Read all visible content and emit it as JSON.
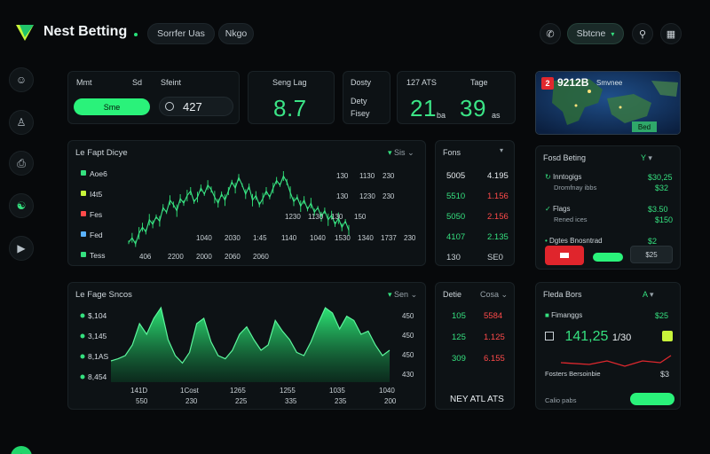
{
  "header": {
    "brand": "Nest Betting",
    "pill1": "Sorrfer Uas",
    "pill2": "Nkgo",
    "pill3": "Sbtcne"
  },
  "stats": {
    "c1_a": "Mmt",
    "c1_b": "Sd",
    "c1_c": "Sfeint",
    "c1_btn": "Sme",
    "c1_input": "427",
    "c2_label": "Seng Lag",
    "c2_value": "8.7",
    "c3_label": "Dosty",
    "c3_a": "Dety",
    "c3_b": "Fisey",
    "c4_a": "127 ATS",
    "c4_b": "Tage",
    "c4_v1": "21",
    "c4_v2": "39",
    "c4_s1": "ba",
    "c4_s2": "as"
  },
  "map": {
    "badge": "2",
    "title": "9212B",
    "sub": "Smvnee",
    "btn": "Bed"
  },
  "chart1": {
    "title": "Le Fapt Dicye",
    "filter": "Sis",
    "series": [
      "Aoe6",
      "I4t5",
      "Fes",
      "Fed",
      "Tess"
    ],
    "ticks_x": [
      "1040",
      "2030",
      "1:45",
      "1140",
      "1040"
    ],
    "ticks_x2": [
      "406",
      "2200",
      "2000",
      "2060",
      "2060"
    ],
    "ticks_right": [
      [
        "130",
        "1130",
        "230"
      ],
      [
        "130",
        "1230",
        "230"
      ],
      [
        "1230",
        "1130",
        "130",
        "150"
      ],
      [
        "1530",
        "1340",
        "1737",
        "230"
      ]
    ],
    "values": [
      32,
      35,
      31,
      38,
      42,
      39,
      47,
      44,
      49,
      46,
      55,
      52,
      60,
      57,
      53,
      61,
      58,
      63,
      66,
      59,
      62,
      68,
      64,
      70,
      67,
      62,
      58,
      64,
      60,
      66,
      72,
      68,
      75,
      70,
      64,
      69,
      60,
      63,
      57,
      61,
      66,
      62,
      68,
      73,
      70,
      76,
      72,
      65,
      59,
      62,
      56,
      60,
      54,
      58,
      52,
      55,
      49,
      53,
      47,
      50,
      44,
      48,
      42,
      46,
      40
    ]
  },
  "odds": {
    "title": "Fons",
    "rows": [
      {
        "a": "5005",
        "b": "4.195",
        "ac": "#e8edf0",
        "bc": "#e8edf0"
      },
      {
        "a": "5510",
        "b": "1.156",
        "ac": "#35e07f",
        "bc": "#ff4a4a"
      },
      {
        "a": "5050",
        "b": "2.156",
        "ac": "#35e07f",
        "bc": "#ff4a4a"
      },
      {
        "a": "4107",
        "b": "2.135",
        "ac": "#35e07f",
        "bc": "#35e07f"
      },
      {
        "a": "130",
        "b": "SE0",
        "ac": "#c9d1d6",
        "bc": "#c9d1d6"
      }
    ]
  },
  "right1": {
    "title": "Fosd Beting",
    "filter": "Y",
    "rows": [
      {
        "t": "Inntogigs",
        "s": "Dromfnay ibbs",
        "v1": "$30,25",
        "v2": "$32"
      },
      {
        "t": "Flags",
        "s": "Rened ices",
        "v1": "$3.50",
        "v2": "$150"
      },
      {
        "t": "Dgtes Bnosntrad",
        "s": "",
        "v1": "$2",
        "v2": ""
      }
    ],
    "btn_red": "",
    "btn_green": "",
    "btn_small": "$25"
  },
  "chart2": {
    "title": "Le Fage Sncos",
    "filter": "Sen",
    "labels": [
      "$,104",
      "3,145",
      "8,1AS",
      "8,454"
    ],
    "ticks_x": [
      "141D",
      "1Cost",
      "1265",
      "1255",
      "1035",
      "1040"
    ],
    "ticks_x2": [
      "550",
      "230",
      "225",
      "335",
      "235",
      "200"
    ],
    "ticks_right": [
      "450",
      "450",
      "450",
      "430"
    ],
    "values": [
      20,
      22,
      25,
      35,
      55,
      45,
      60,
      70,
      40,
      25,
      18,
      28,
      55,
      60,
      38,
      25,
      22,
      30,
      45,
      52,
      40,
      30,
      35,
      58,
      48,
      40,
      28,
      25,
      38,
      55,
      70,
      65,
      50,
      62,
      58,
      45,
      48,
      35,
      25,
      30
    ]
  },
  "odds2": {
    "title": "Detie",
    "filter": "Cosa",
    "rows": [
      {
        "a": "105",
        "b": "5584",
        "ac": "#35e07f",
        "bc": "#ff4a4a"
      },
      {
        "a": "125",
        "b": "1.125",
        "ac": "#35e07f",
        "bc": "#ff4a4a"
      },
      {
        "a": "309",
        "b": "6.155",
        "ac": "#35e07f",
        "bc": "#ff4a4a"
      }
    ],
    "footer": "NEY ATL ATS"
  },
  "right2": {
    "title": "Fleda Bors",
    "filter": "A",
    "row1": "Fimanggs",
    "row1v": "$25",
    "big": "141,25",
    "big_sub": "1/30",
    "row3": "Fosters Bersoinbie",
    "row3v": "$3",
    "footer_l": "Calio pabs",
    "footer_btn": ""
  },
  "colors": {
    "accent": "#2af27a",
    "bg": "#07090b",
    "card": "#0d1215",
    "red": "#ff4a4a"
  }
}
